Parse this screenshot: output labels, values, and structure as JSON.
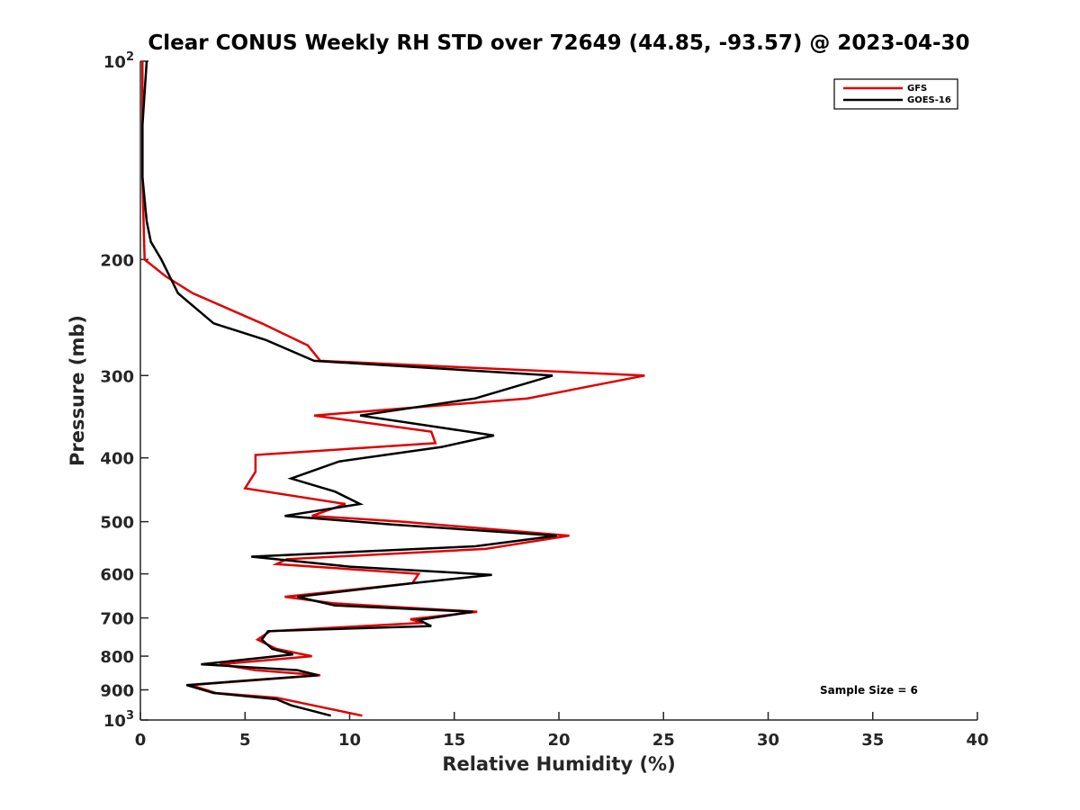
{
  "chart_data": {
    "type": "line",
    "title": "Clear CONUS Weekly RH STD over 72649 (44.85, -93.57) @ 2023-04-30",
    "xlabel": "Relative Humidity (%)",
    "ylabel": "Pressure (mb)",
    "xlim": [
      0,
      40
    ],
    "ylim": [
      100,
      1000
    ],
    "y_scale": "log",
    "y_reversed": true,
    "x_ticks": [
      "0",
      "5",
      "10",
      "15",
      "20",
      "25",
      "30",
      "35",
      "40"
    ],
    "y_ticks": [
      {
        "value": 100,
        "base": "10",
        "exp": "2"
      },
      {
        "value": 200,
        "label": "200"
      },
      {
        "value": 300,
        "label": "300"
      },
      {
        "value": 400,
        "label": "400"
      },
      {
        "value": 500,
        "label": "500"
      },
      {
        "value": 600,
        "label": "600"
      },
      {
        "value": 700,
        "label": "700"
      },
      {
        "value": 800,
        "label": "800"
      },
      {
        "value": 900,
        "label": "900"
      },
      {
        "value": 1000,
        "base": "10",
        "exp": "3"
      }
    ],
    "grid": false,
    "legend_position": "top-right",
    "annotation": "Sample Size = 6",
    "series": [
      {
        "name": "GFS",
        "color": "#e00000",
        "points": [
          [
            0.1,
            100
          ],
          [
            0.1,
            125
          ],
          [
            0.1,
            150
          ],
          [
            0.15,
            175
          ],
          [
            0.2,
            200
          ],
          [
            1.2,
            212
          ],
          [
            2.5,
            225
          ],
          [
            5.8,
            250
          ],
          [
            8.0,
            270
          ],
          [
            8.6,
            285
          ],
          [
            24.1,
            300
          ],
          [
            18.5,
            325
          ],
          [
            8.3,
            345
          ],
          [
            13.9,
            365
          ],
          [
            14.1,
            380
          ],
          [
            5.5,
            396
          ],
          [
            5.5,
            420
          ],
          [
            5.0,
            445
          ],
          [
            9.8,
            470
          ],
          [
            8.2,
            490
          ],
          [
            12.5,
            500
          ],
          [
            20.5,
            525
          ],
          [
            16.5,
            550
          ],
          [
            7.0,
            570
          ],
          [
            6.5,
            580
          ],
          [
            13.3,
            600
          ],
          [
            13.0,
            620
          ],
          [
            6.9,
            650
          ],
          [
            9.2,
            665
          ],
          [
            16.1,
            685
          ],
          [
            12.9,
            703
          ],
          [
            13.5,
            712
          ],
          [
            6.2,
            733
          ],
          [
            5.6,
            755
          ],
          [
            6.5,
            780
          ],
          [
            8.2,
            800
          ],
          [
            3.8,
            823
          ],
          [
            5.5,
            840
          ],
          [
            8.6,
            855
          ],
          [
            2.4,
            885
          ],
          [
            3.6,
            910
          ],
          [
            6.5,
            925
          ],
          [
            10.6,
            985
          ]
        ]
      },
      {
        "name": "GOES-16",
        "color": "#000000",
        "points": [
          [
            0.3,
            100
          ],
          [
            0.1,
            125
          ],
          [
            0.1,
            150
          ],
          [
            0.3,
            175
          ],
          [
            0.5,
            188
          ],
          [
            1.0,
            200
          ],
          [
            1.8,
            225
          ],
          [
            3.5,
            250
          ],
          [
            6.0,
            265
          ],
          [
            8.3,
            285
          ],
          [
            19.7,
            300
          ],
          [
            16.0,
            325
          ],
          [
            10.5,
            345
          ],
          [
            16.9,
            370
          ],
          [
            14.4,
            385
          ],
          [
            9.5,
            405
          ],
          [
            7.2,
            430
          ],
          [
            9.3,
            450
          ],
          [
            10.5,
            470
          ],
          [
            6.9,
            490
          ],
          [
            12.0,
            505
          ],
          [
            19.9,
            525
          ],
          [
            16.0,
            545
          ],
          [
            5.3,
            565
          ],
          [
            10.0,
            585
          ],
          [
            16.8,
            602
          ],
          [
            13.0,
            620
          ],
          [
            7.5,
            650
          ],
          [
            9.3,
            670
          ],
          [
            15.9,
            685
          ],
          [
            13.3,
            705
          ],
          [
            13.9,
            720
          ],
          [
            6.1,
            733
          ],
          [
            5.8,
            755
          ],
          [
            6.3,
            780
          ],
          [
            7.3,
            795
          ],
          [
            2.9,
            823
          ],
          [
            7.5,
            840
          ],
          [
            8.5,
            855
          ],
          [
            2.2,
            885
          ],
          [
            3.5,
            910
          ],
          [
            6.5,
            930
          ],
          [
            7.2,
            950
          ],
          [
            9.1,
            985
          ]
        ]
      }
    ]
  }
}
